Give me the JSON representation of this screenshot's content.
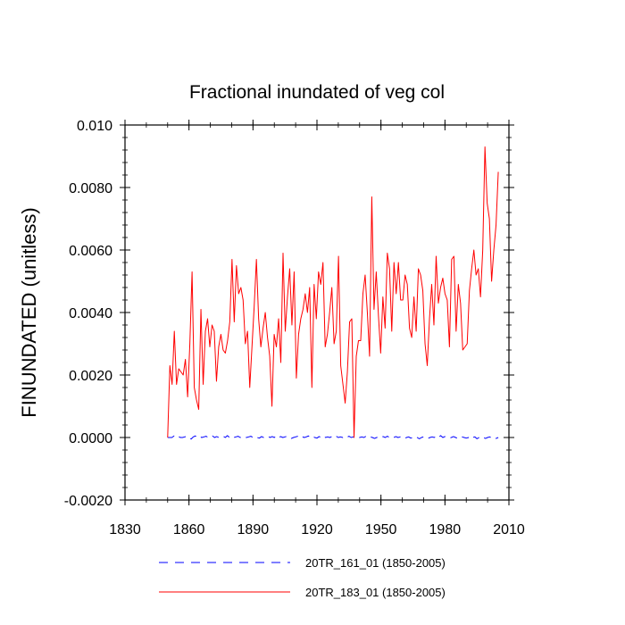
{
  "chart_data": {
    "type": "line",
    "title": "Fractional inundated of veg col",
    "xlabel": "",
    "ylabel": "FINUNDATED  (unitless)",
    "xlim": [
      1830,
      2010
    ],
    "ylim": [
      -0.002,
      0.01
    ],
    "xticks": [
      1830,
      1860,
      1890,
      1920,
      1950,
      1980,
      2010
    ],
    "xtick_labels": [
      "1830",
      "1860",
      "1890",
      "1920",
      "1950",
      "1980",
      "2010"
    ],
    "yticks": [
      -0.002,
      0.0,
      0.002,
      0.004,
      0.006,
      0.008,
      0.01
    ],
    "ytick_labels": [
      "-0.0020",
      "0.0000",
      "0.0020",
      "0.0040",
      "0.0060",
      "0.0080",
      "0.010"
    ],
    "x_start": 1850,
    "x_end": 2005,
    "series": [
      {
        "name": "20TR_161_01 (1850-2005)",
        "color": "#0000ff",
        "dash": "dashed",
        "values": [
          0.0,
          0.0,
          0.0,
          5e-05,
          0.0,
          3e-05,
          0.0,
          0.0,
          2e-05,
          4e-05,
          0.0,
          -5e-05,
          2e-05,
          5e-05,
          0.0,
          3e-05,
          0.0,
          2e-05,
          4e-05,
          0.0,
          3e-05,
          5e-05,
          0.0,
          3e-05,
          0.0,
          2e-05,
          4e-05,
          0.0,
          6e-05,
          0.0,
          3e-05,
          0.0,
          2e-05,
          4e-05,
          0.0,
          3e-05,
          1e-05,
          0.0,
          2e-05,
          4e-05,
          0.0,
          3e-05,
          0.0,
          -2e-05,
          3e-05,
          0.0,
          2e-05,
          4e-05,
          0.0,
          3e-05,
          0.0,
          5e-05,
          0.0,
          3e-05,
          0.0,
          2e-05,
          4e-05,
          0.0,
          -3e-05,
          0.0,
          2e-05,
          4e-05,
          0.0,
          3e-05,
          0.0,
          2e-05,
          5e-05,
          0.0,
          3e-05,
          0.0,
          -2e-05,
          3e-05,
          0.0,
          4e-05,
          0.0,
          2e-05,
          0.0,
          3e-05,
          0.0,
          4e-05,
          0.0,
          2e-05,
          0.0,
          3e-05,
          0.0,
          4e-05,
          0.0,
          2e-05,
          0.0,
          3e-05,
          0.0,
          2e-05,
          0.0,
          4e-05,
          0.0,
          2e-05,
          0.0,
          -3e-05,
          0.0,
          2e-05,
          0.0,
          3e-05,
          0.0,
          4e-05,
          0.0,
          2e-05,
          0.0,
          3e-05,
          0.0,
          2e-05,
          0.0,
          -3e-05,
          0.0,
          2e-05,
          -2e-05,
          0.0,
          3e-05,
          0.0,
          -4e-05,
          0.0,
          2e-05,
          0.0,
          -3e-05,
          0.0,
          2e-05,
          0.0,
          4e-05,
          0.0,
          6e-05,
          0.0,
          3e-05,
          0.0,
          -2e-05,
          0.0,
          3e-05,
          0.0,
          -3e-05,
          0.0,
          2e-05,
          0.0,
          -2e-05,
          0.0,
          -5e-05,
          0.0,
          2e-05,
          -4e-05,
          0.0,
          3e-05,
          0.0,
          -3e-05,
          0.0,
          2e-05,
          -2e-05,
          0.0,
          -3e-05,
          0.0
        ]
      },
      {
        "name": "20TR_183_01 (1850-2005)",
        "color": "#ff0000",
        "dash": "solid",
        "values": [
          0.0,
          0.0023,
          0.0017,
          0.0034,
          0.0017,
          0.0022,
          0.0021,
          0.002,
          0.0025,
          0.0013,
          0.003,
          0.0053,
          0.0016,
          0.0012,
          0.0009,
          0.0041,
          0.0017,
          0.0034,
          0.0038,
          0.0029,
          0.0036,
          0.0034,
          0.0018,
          0.0029,
          0.0033,
          0.0028,
          0.0027,
          0.0031,
          0.0037,
          0.0057,
          0.0037,
          0.0055,
          0.0046,
          0.0048,
          0.0044,
          0.003,
          0.0034,
          0.0016,
          0.0029,
          0.0042,
          0.0057,
          0.0038,
          0.0029,
          0.0035,
          0.004,
          0.0032,
          0.0026,
          0.001,
          0.0033,
          0.0029,
          0.0038,
          0.0024,
          0.0059,
          0.0034,
          0.0045,
          0.0054,
          0.0036,
          0.0053,
          0.0019,
          0.0033,
          0.0038,
          0.0041,
          0.0046,
          0.004,
          0.0048,
          0.0016,
          0.0049,
          0.0038,
          0.0053,
          0.0049,
          0.0056,
          0.0029,
          0.0033,
          0.004,
          0.0048,
          0.003,
          0.0034,
          0.0058,
          0.0023,
          0.0017,
          0.0011,
          0.0021,
          0.0037,
          0.0038,
          0.0,
          0.0026,
          0.0031,
          0.0031,
          0.0046,
          0.0052,
          0.004,
          0.0026,
          0.0077,
          0.0041,
          0.0053,
          0.0039,
          0.0027,
          0.0045,
          0.0035,
          0.0059,
          0.0054,
          0.0034,
          0.0056,
          0.0046,
          0.0056,
          0.0044,
          0.0044,
          0.0052,
          0.0049,
          0.0035,
          0.0032,
          0.0045,
          0.0034,
          0.0054,
          0.0052,
          0.0047,
          0.003,
          0.0023,
          0.0038,
          0.0049,
          0.0036,
          0.0058,
          0.0043,
          0.0048,
          0.0051,
          0.0046,
          0.0044,
          0.0029,
          0.0057,
          0.0058,
          0.0034,
          0.0049,
          0.0043,
          0.0028,
          0.0029,
          0.003,
          0.0047,
          0.0054,
          0.006,
          0.0052,
          0.0054,
          0.0045,
          0.006,
          0.0093,
          0.0075,
          0.007,
          0.005,
          0.006,
          0.0068,
          0.0085
        ]
      }
    ],
    "legend_position": "bottom"
  }
}
